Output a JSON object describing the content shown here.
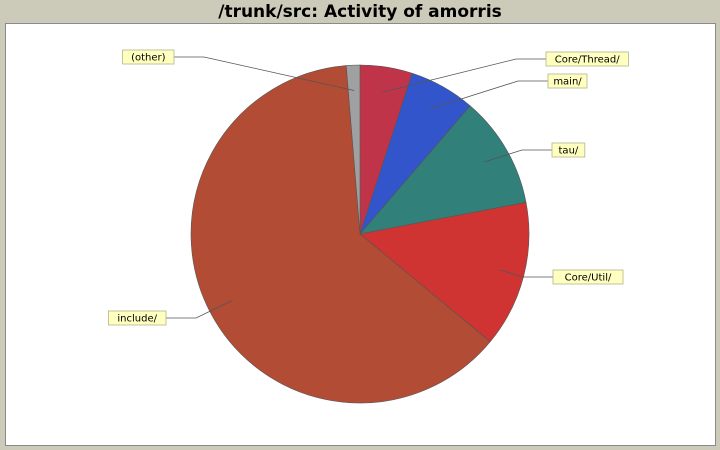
{
  "page": {
    "title": "/trunk/src: Activity of amorris"
  },
  "chart_data": {
    "type": "pie",
    "title": "/trunk/src: Activity of amorris",
    "start_angle_deg": 90,
    "direction": "clockwise",
    "slices": [
      {
        "label": "Core/Thread/",
        "value": 5.0,
        "color": "#c0344a"
      },
      {
        "label": "main/",
        "value": 6.3,
        "color": "#3355cc"
      },
      {
        "label": "tau/",
        "value": 10.7,
        "color": "#32807a"
      },
      {
        "label": "Core/Util/",
        "value": 14.0,
        "color": "#d03432"
      },
      {
        "label": "include/",
        "value": 62.7,
        "color": "#b34c35"
      },
      {
        "label": "(other)",
        "value": 1.3,
        "color": "#a0a0a0"
      }
    ],
    "label_style": {
      "background": "#ffffc0",
      "border": "#b4b48c"
    }
  }
}
